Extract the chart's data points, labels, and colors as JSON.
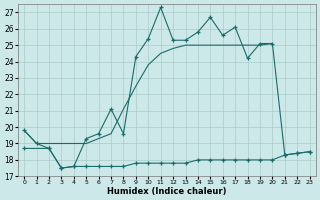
{
  "xlabel": "Humidex (Indice chaleur)",
  "bg_color": "#cce8e8",
  "grid_color": "#aacccc",
  "line_color": "#1a6b6b",
  "x_values": [
    0,
    1,
    2,
    3,
    4,
    5,
    6,
    7,
    8,
    9,
    10,
    11,
    12,
    13,
    14,
    15,
    16,
    17,
    18,
    19,
    20,
    21,
    22,
    23
  ],
  "series_max": [
    19.8,
    19.0,
    18.7,
    17.5,
    17.6,
    19.3,
    19.6,
    21.1,
    19.6,
    24.3,
    25.4,
    27.3,
    25.3,
    25.3,
    25.8,
    26.7,
    25.6,
    26.1,
    24.2,
    25.1,
    25.1,
    18.3,
    18.4,
    18.5
  ],
  "series_mid": [
    19.8,
    19.0,
    19.0,
    19.0,
    19.0,
    19.0,
    19.3,
    19.6,
    21.1,
    22.5,
    23.8,
    24.5,
    24.8,
    25.0,
    25.0,
    25.0,
    25.0,
    25.0,
    25.0,
    25.0,
    25.1,
    25.1,
    18.3,
    18.4
  ],
  "series_min": [
    18.7,
    null,
    18.7,
    17.5,
    17.6,
    17.6,
    17.6,
    17.6,
    17.6,
    17.8,
    17.8,
    17.8,
    17.8,
    17.8,
    18.0,
    18.0,
    18.0,
    18.0,
    18.0,
    18.0,
    18.0,
    18.3,
    18.4,
    18.5
  ],
  "ylim": [
    17,
    27.5
  ],
  "xlim": [
    -0.5,
    23.5
  ],
  "yticks": [
    17,
    18,
    19,
    20,
    21,
    22,
    23,
    24,
    25,
    26,
    27
  ],
  "xtick_labels": [
    "0",
    "1",
    "2",
    "3",
    "4",
    "5",
    "6",
    "7",
    "8",
    "9",
    "10",
    "11",
    "12",
    "13",
    "14",
    "15",
    "16",
    "17",
    "18",
    "19",
    "20",
    "21",
    "22",
    "23"
  ]
}
